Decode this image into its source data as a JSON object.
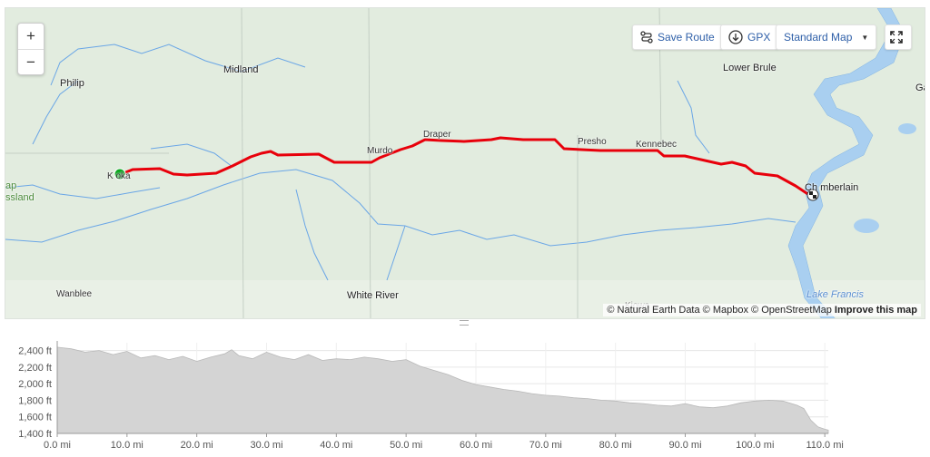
{
  "map": {
    "zoom_in": "+",
    "zoom_out": "−",
    "labels": {
      "midland": "Midland",
      "philip": "Philip",
      "lower_brule": "Lower Brule",
      "ga": "Ga",
      "draper": "Draper",
      "murdo": "Murdo",
      "presho": "Presho",
      "kennebec": "Kennebec",
      "kadoka": "K  oka",
      "chamberlain": "Ch   mberlain",
      "map_partial": "ap",
      "grassland_partial": "ssland",
      "wanblee": "Wanblee",
      "white_river": "White River",
      "lake_francis": "Lake Francis",
      "kiowa_partial": "Kiowa"
    },
    "attribution": {
      "natural_earth": "© Natural Earth Data",
      "mapbox": "© Mapbox",
      "osm": "© OpenStreetMap",
      "improve": "Improve this map"
    },
    "colors": {
      "route": "#e8000b",
      "start": "#0aa61e",
      "water": "#a9cff0",
      "river": "#6aa6e6"
    }
  },
  "toolbar": {
    "save_route": "Save Route",
    "gpx": "GPX",
    "map_style": "Standard Map"
  },
  "elevation": {
    "y_ticks": [
      "2,400 ft",
      "2,200 ft",
      "2,000 ft",
      "1,800 ft",
      "1,600 ft",
      "1,400 ft"
    ],
    "x_ticks": [
      "0.0 mi",
      "10.0 mi",
      "20.0 mi",
      "30.0 mi",
      "40.0 mi",
      "50.0 mi",
      "60.0 mi",
      "70.0 mi",
      "80.0 mi",
      "90.0 mi",
      "100.0 mi",
      "110.0 mi"
    ]
  },
  "chart_data": {
    "type": "area",
    "xlabel": "",
    "ylabel": "",
    "xlim": [
      0,
      110.5
    ],
    "ylim": [
      1400,
      2450
    ],
    "x_unit": "mi",
    "y_unit": "ft",
    "x": [
      0,
      2,
      4,
      6,
      8,
      10,
      12,
      14,
      16,
      18,
      20,
      22,
      24,
      25,
      26,
      28,
      30,
      32,
      34,
      36,
      38,
      40,
      42,
      44,
      46,
      48,
      50,
      52,
      54,
      56,
      58,
      60,
      62,
      64,
      66,
      68,
      70,
      72,
      74,
      76,
      78,
      80,
      82,
      84,
      86,
      88,
      90,
      92,
      94,
      96,
      98,
      100,
      102,
      104,
      106,
      107,
      108,
      109,
      110,
      110.5
    ],
    "values": [
      2440,
      2420,
      2380,
      2400,
      2350,
      2390,
      2310,
      2340,
      2290,
      2330,
      2270,
      2320,
      2360,
      2410,
      2340,
      2300,
      2380,
      2320,
      2290,
      2350,
      2280,
      2300,
      2290,
      2320,
      2300,
      2270,
      2290,
      2210,
      2160,
      2110,
      2040,
      1990,
      1960,
      1930,
      1910,
      1880,
      1860,
      1850,
      1830,
      1820,
      1800,
      1790,
      1770,
      1760,
      1740,
      1730,
      1760,
      1720,
      1710,
      1730,
      1770,
      1790,
      1800,
      1790,
      1740,
      1700,
      1560,
      1480,
      1450,
      1440
    ]
  }
}
